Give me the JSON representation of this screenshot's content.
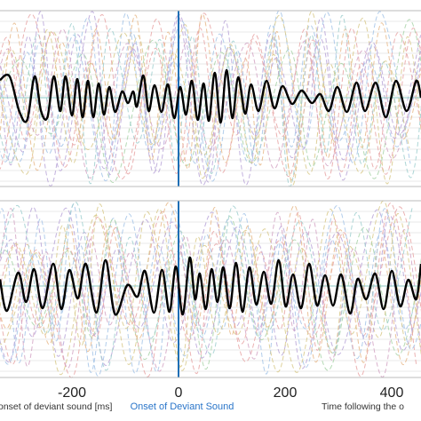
{
  "chart_data": {
    "type": "line",
    "title": "",
    "xlabel_left": "onset of deviant sound [ms]",
    "xlabel_right": "Time following the o",
    "onset_label": "Onset of Deviant Sound",
    "onset_time": 0,
    "xlim": [
      -335,
      455
    ],
    "xticks": [
      -200,
      0,
      200,
      400
    ],
    "xtick_labels": [
      "-200",
      "0",
      "200",
      "400"
    ],
    "grid": true,
    "colors": {
      "mean": "#000000",
      "onset": "#1f6fb5",
      "onset_text": "#2a75c9",
      "baseline": "#8cc9c4",
      "frame": "#bbbbbb",
      "grid": "#e8e8e8",
      "trials": [
        "#e8a4a4",
        "#a4c4e8",
        "#d8c98a",
        "#b8a4d8",
        "#a8d4a8",
        "#e8b88a",
        "#d4a4c4",
        "#9fcfcf"
      ]
    },
    "panels": [
      {
        "name": "top",
        "series": [
          {
            "role": "mean",
            "x": [
              -335,
              -317,
              -299,
              -284,
              -270,
              -258,
              -246,
              -234,
              -222,
              -212,
              -200,
              -190,
              -180,
              -170,
              -160,
              -150,
              -140,
              -130,
              -119,
              -106,
              -95,
              -85,
              -78,
              -66,
              -56,
              -45,
              -32,
              -20,
              -8,
              3,
              14,
              25,
              36,
              47,
              57,
              68,
              79,
              90,
              101,
              112,
              125,
              136,
              150,
              165,
              180,
              195,
              213,
              231,
              250,
              266,
              282,
              298,
              316,
              334,
              350,
              370,
              389,
              408,
              428,
              446,
              455
            ],
            "y": [
              0.8,
              0.96,
              -0.6,
              -1.0,
              0.96,
              -0.6,
              -0.88,
              0.96,
              -0.6,
              0.96,
              -0.8,
              0.84,
              -0.88,
              0.76,
              -0.88,
              0.64,
              -0.76,
              0.48,
              -0.64,
              0.28,
              -0.24,
              0.28,
              -0.4,
              1.0,
              -0.6,
              0.56,
              -0.64,
              0.6,
              -0.92,
              0.48,
              -0.76,
              0.76,
              -1.0,
              0.64,
              -1.04,
              1.12,
              -1.12,
              1.24,
              -0.92,
              0.92,
              -0.72,
              0.6,
              -0.6,
              0.76,
              -0.48,
              0.52,
              -0.28,
              0.32,
              -0.24,
              0.16,
              -0.6,
              0.48,
              -0.64,
              0.68,
              -0.6,
              0.68,
              -0.88,
              0.76,
              -0.6,
              0.76,
              0.0
            ]
          }
        ]
      },
      {
        "name": "bottom",
        "series": [
          {
            "role": "mean",
            "x": [
              -335,
              -322,
              -301,
              -286,
              -271,
              -255,
              -235,
              -220,
              -205,
              -189,
              -174,
              -154,
              -137,
              -119,
              -96,
              -77,
              -63,
              -46,
              -31,
              -17,
              -5,
              8,
              21,
              31,
              40,
              51,
              62,
              73,
              84,
              96,
              108,
              120,
              133,
              146,
              160,
              174,
              188,
              201,
              215,
              230,
              245,
              260,
              275,
              290,
              305,
              322,
              336,
              352,
              369,
              385,
              400,
              416,
              431,
              446,
              455
            ],
            "y": [
              0.3,
              -1.12,
              0.6,
              -0.72,
              0.76,
              -1.0,
              1.0,
              -1.04,
              0.72,
              -0.56,
              1.0,
              -1.2,
              1.16,
              -1.28,
              0.04,
              -0.48,
              0.68,
              -1.2,
              0.72,
              -1.16,
              0.88,
              -1.28,
              1.28,
              -0.6,
              0.56,
              -1.04,
              0.76,
              -0.72,
              0.84,
              -1.0,
              1.04,
              -1.16,
              0.84,
              -0.84,
              0.64,
              -0.8,
              1.16,
              -0.92,
              0.52,
              -1.0,
              1.0,
              -0.88,
              0.48,
              -0.88,
              0.52,
              -1.24,
              0.32,
              -0.6,
              0.56,
              -1.04,
              0.68,
              -0.92,
              0.28,
              -0.6,
              1.0
            ]
          }
        ]
      }
    ]
  }
}
